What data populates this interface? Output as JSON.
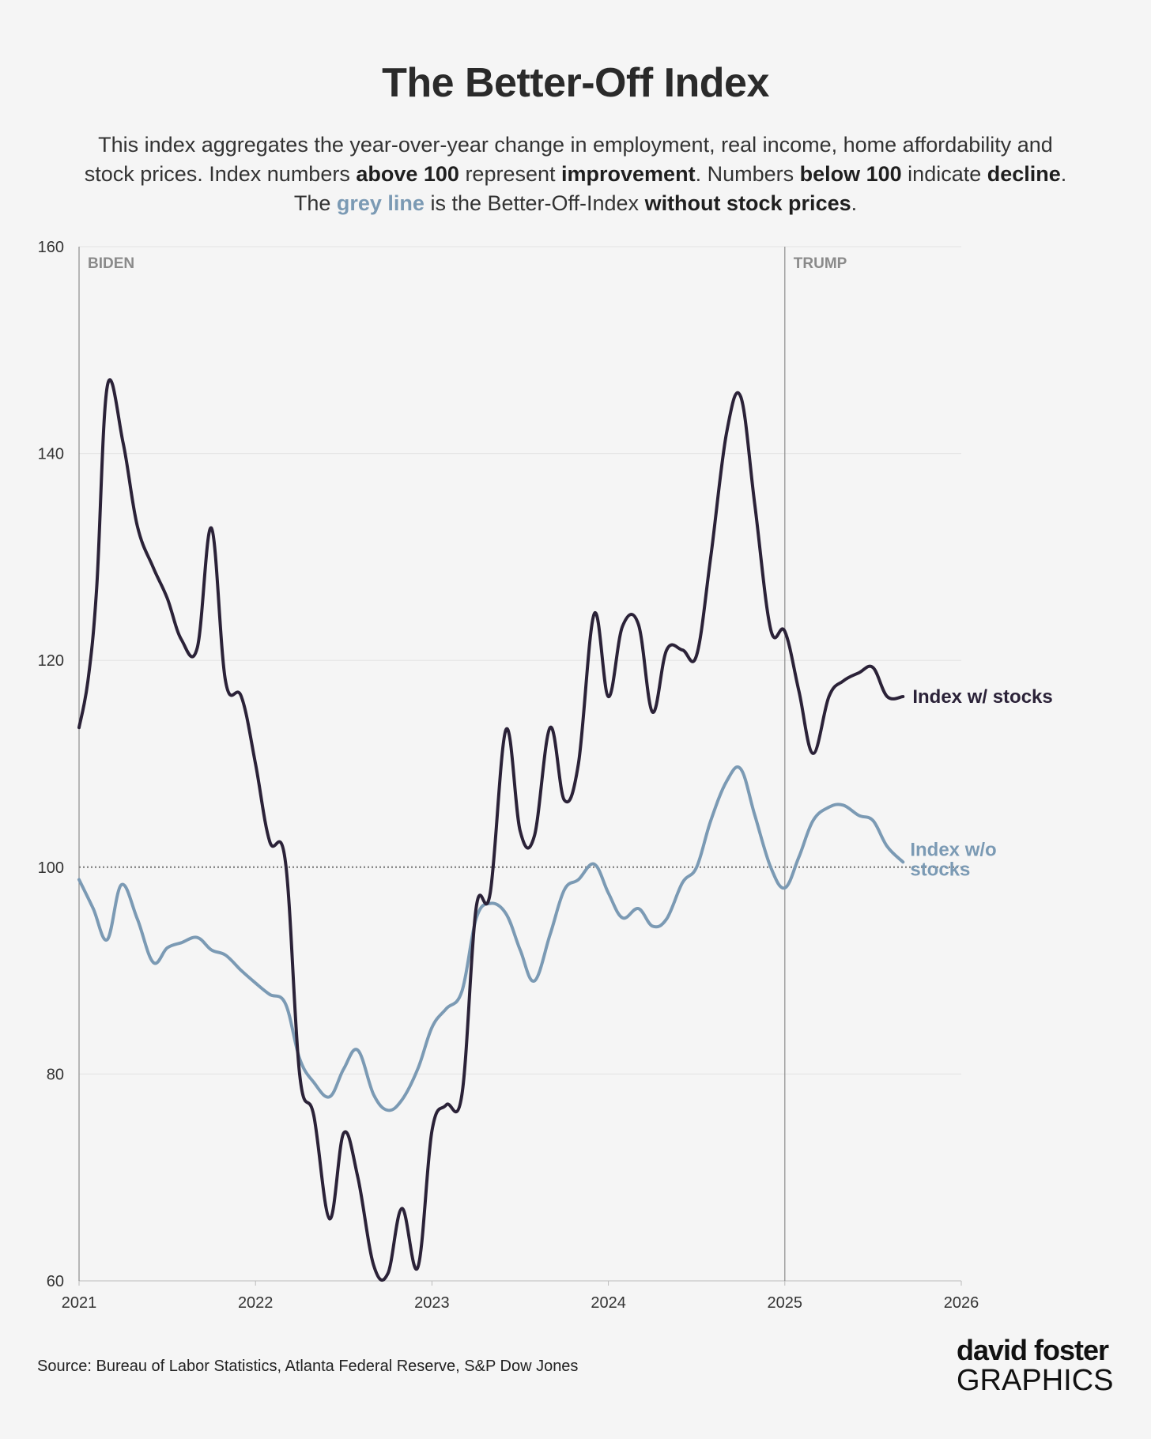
{
  "title": "The Better-Off Index",
  "subtitle": {
    "l1": "This index aggregates the year-over-year change in employment, real income, home affordability and",
    "l2a": "stock prices. Index numbers ",
    "l2b": "above 100",
    "l2c": " represent ",
    "l2d": "improvement",
    "l2e": ". Numbers ",
    "l2f": "below 100",
    "l2g": " indicate ",
    "l2h": "decline",
    "l2i": ".",
    "l3a": "The ",
    "l3b": "grey line",
    "l3c": " is the Better-Off-Index ",
    "l3d": "without stock prices",
    "l3e": "."
  },
  "source": "Source: Bureau of Labor Statistics, Atlanta Federal Reserve, S&P Dow Jones",
  "logo": {
    "line1": "david foster",
    "line2": "GRAPHICS"
  },
  "colors": {
    "with_stocks": "#2b2238",
    "without_stocks": "#7b9ab4",
    "background": "#f5f5f5"
  },
  "chart_data": {
    "type": "line",
    "xlim": [
      2021,
      2026
    ],
    "ylim": [
      60,
      160
    ],
    "x_ticks": [
      "2021",
      "2022",
      "2023",
      "2024",
      "2025",
      "2026"
    ],
    "y_ticks": [
      "60",
      "80",
      "100",
      "120",
      "140",
      "160"
    ],
    "reference_line": 100,
    "eras": [
      {
        "label": "BIDEN",
        "start": 2021
      },
      {
        "label": "TRUMP",
        "start": 2025
      }
    ],
    "series": [
      {
        "name": "Index w/ stocks",
        "points": [
          [
            2021.0,
            113.5
          ],
          [
            2021.05,
            118
          ],
          [
            2021.1,
            127
          ],
          [
            2021.16,
            146.5
          ],
          [
            2021.25,
            141
          ],
          [
            2021.33,
            133
          ],
          [
            2021.42,
            129
          ],
          [
            2021.5,
            126
          ],
          [
            2021.58,
            122
          ],
          [
            2021.67,
            121.2
          ],
          [
            2021.75,
            132.8
          ],
          [
            2021.83,
            118
          ],
          [
            2021.92,
            116.5
          ],
          [
            2022.0,
            110
          ],
          [
            2022.08,
            102.5
          ],
          [
            2022.17,
            100.5
          ],
          [
            2022.25,
            80
          ],
          [
            2022.33,
            76
          ],
          [
            2022.42,
            66
          ],
          [
            2022.5,
            74.3
          ],
          [
            2022.58,
            70
          ],
          [
            2022.67,
            61.5
          ],
          [
            2022.75,
            60.7
          ],
          [
            2022.83,
            67
          ],
          [
            2022.92,
            61.3
          ],
          [
            2023.0,
            74.5
          ],
          [
            2023.08,
            77
          ],
          [
            2023.17,
            78
          ],
          [
            2023.25,
            96
          ],
          [
            2023.33,
            97.5
          ],
          [
            2023.42,
            113.3
          ],
          [
            2023.5,
            103.5
          ],
          [
            2023.58,
            103
          ],
          [
            2023.67,
            113.5
          ],
          [
            2023.75,
            106.5
          ],
          [
            2023.83,
            110
          ],
          [
            2023.92,
            124.5
          ],
          [
            2024.0,
            116.5
          ],
          [
            2024.08,
            123.3
          ],
          [
            2024.17,
            123.5
          ],
          [
            2024.25,
            115
          ],
          [
            2024.33,
            121
          ],
          [
            2024.42,
            121
          ],
          [
            2024.5,
            120.5
          ],
          [
            2024.58,
            130
          ],
          [
            2024.67,
            142
          ],
          [
            2024.75,
            145.5
          ],
          [
            2024.83,
            135
          ],
          [
            2024.92,
            123
          ],
          [
            2025.0,
            122.8
          ],
          [
            2025.08,
            117
          ],
          [
            2025.16,
            111
          ],
          [
            2025.25,
            116.5
          ],
          [
            2025.33,
            118
          ],
          [
            2025.42,
            118.8
          ],
          [
            2025.5,
            119.3
          ],
          [
            2025.58,
            116.5
          ],
          [
            2025.67,
            116.5
          ]
        ]
      },
      {
        "name": "Index w/o stocks",
        "points": [
          [
            2021.0,
            98.8
          ],
          [
            2021.08,
            96
          ],
          [
            2021.16,
            93
          ],
          [
            2021.24,
            98.3
          ],
          [
            2021.33,
            95
          ],
          [
            2021.42,
            90.8
          ],
          [
            2021.5,
            92.2
          ],
          [
            2021.58,
            92.7
          ],
          [
            2021.67,
            93.2
          ],
          [
            2021.75,
            92
          ],
          [
            2021.83,
            91.5
          ],
          [
            2021.92,
            90
          ],
          [
            2022.0,
            88.8
          ],
          [
            2022.08,
            87.7
          ],
          [
            2022.17,
            86.8
          ],
          [
            2022.25,
            81.5
          ],
          [
            2022.33,
            79.2
          ],
          [
            2022.42,
            77.8
          ],
          [
            2022.5,
            80.5
          ],
          [
            2022.58,
            82.3
          ],
          [
            2022.67,
            78
          ],
          [
            2022.75,
            76.5
          ],
          [
            2022.83,
            77.5
          ],
          [
            2022.92,
            80.5
          ],
          [
            2023.0,
            84.5
          ],
          [
            2023.08,
            86.3
          ],
          [
            2023.17,
            88
          ],
          [
            2023.25,
            95
          ],
          [
            2023.33,
            96.5
          ],
          [
            2023.42,
            95.5
          ],
          [
            2023.5,
            92
          ],
          [
            2023.58,
            89
          ],
          [
            2023.67,
            93.5
          ],
          [
            2023.75,
            97.8
          ],
          [
            2023.83,
            98.8
          ],
          [
            2023.92,
            100.3
          ],
          [
            2024.0,
            97.5
          ],
          [
            2024.08,
            95.1
          ],
          [
            2024.17,
            96
          ],
          [
            2024.25,
            94.3
          ],
          [
            2024.33,
            95
          ],
          [
            2024.42,
            98.5
          ],
          [
            2024.5,
            100
          ],
          [
            2024.58,
            104.5
          ],
          [
            2024.67,
            108.3
          ],
          [
            2024.75,
            109.5
          ],
          [
            2024.83,
            105
          ],
          [
            2024.92,
            100
          ],
          [
            2025.0,
            98
          ],
          [
            2025.08,
            101
          ],
          [
            2025.16,
            104.5
          ],
          [
            2025.25,
            105.8
          ],
          [
            2025.33,
            106
          ],
          [
            2025.42,
            105
          ],
          [
            2025.5,
            104.5
          ],
          [
            2025.58,
            102
          ],
          [
            2025.67,
            100.5
          ]
        ]
      }
    ]
  }
}
